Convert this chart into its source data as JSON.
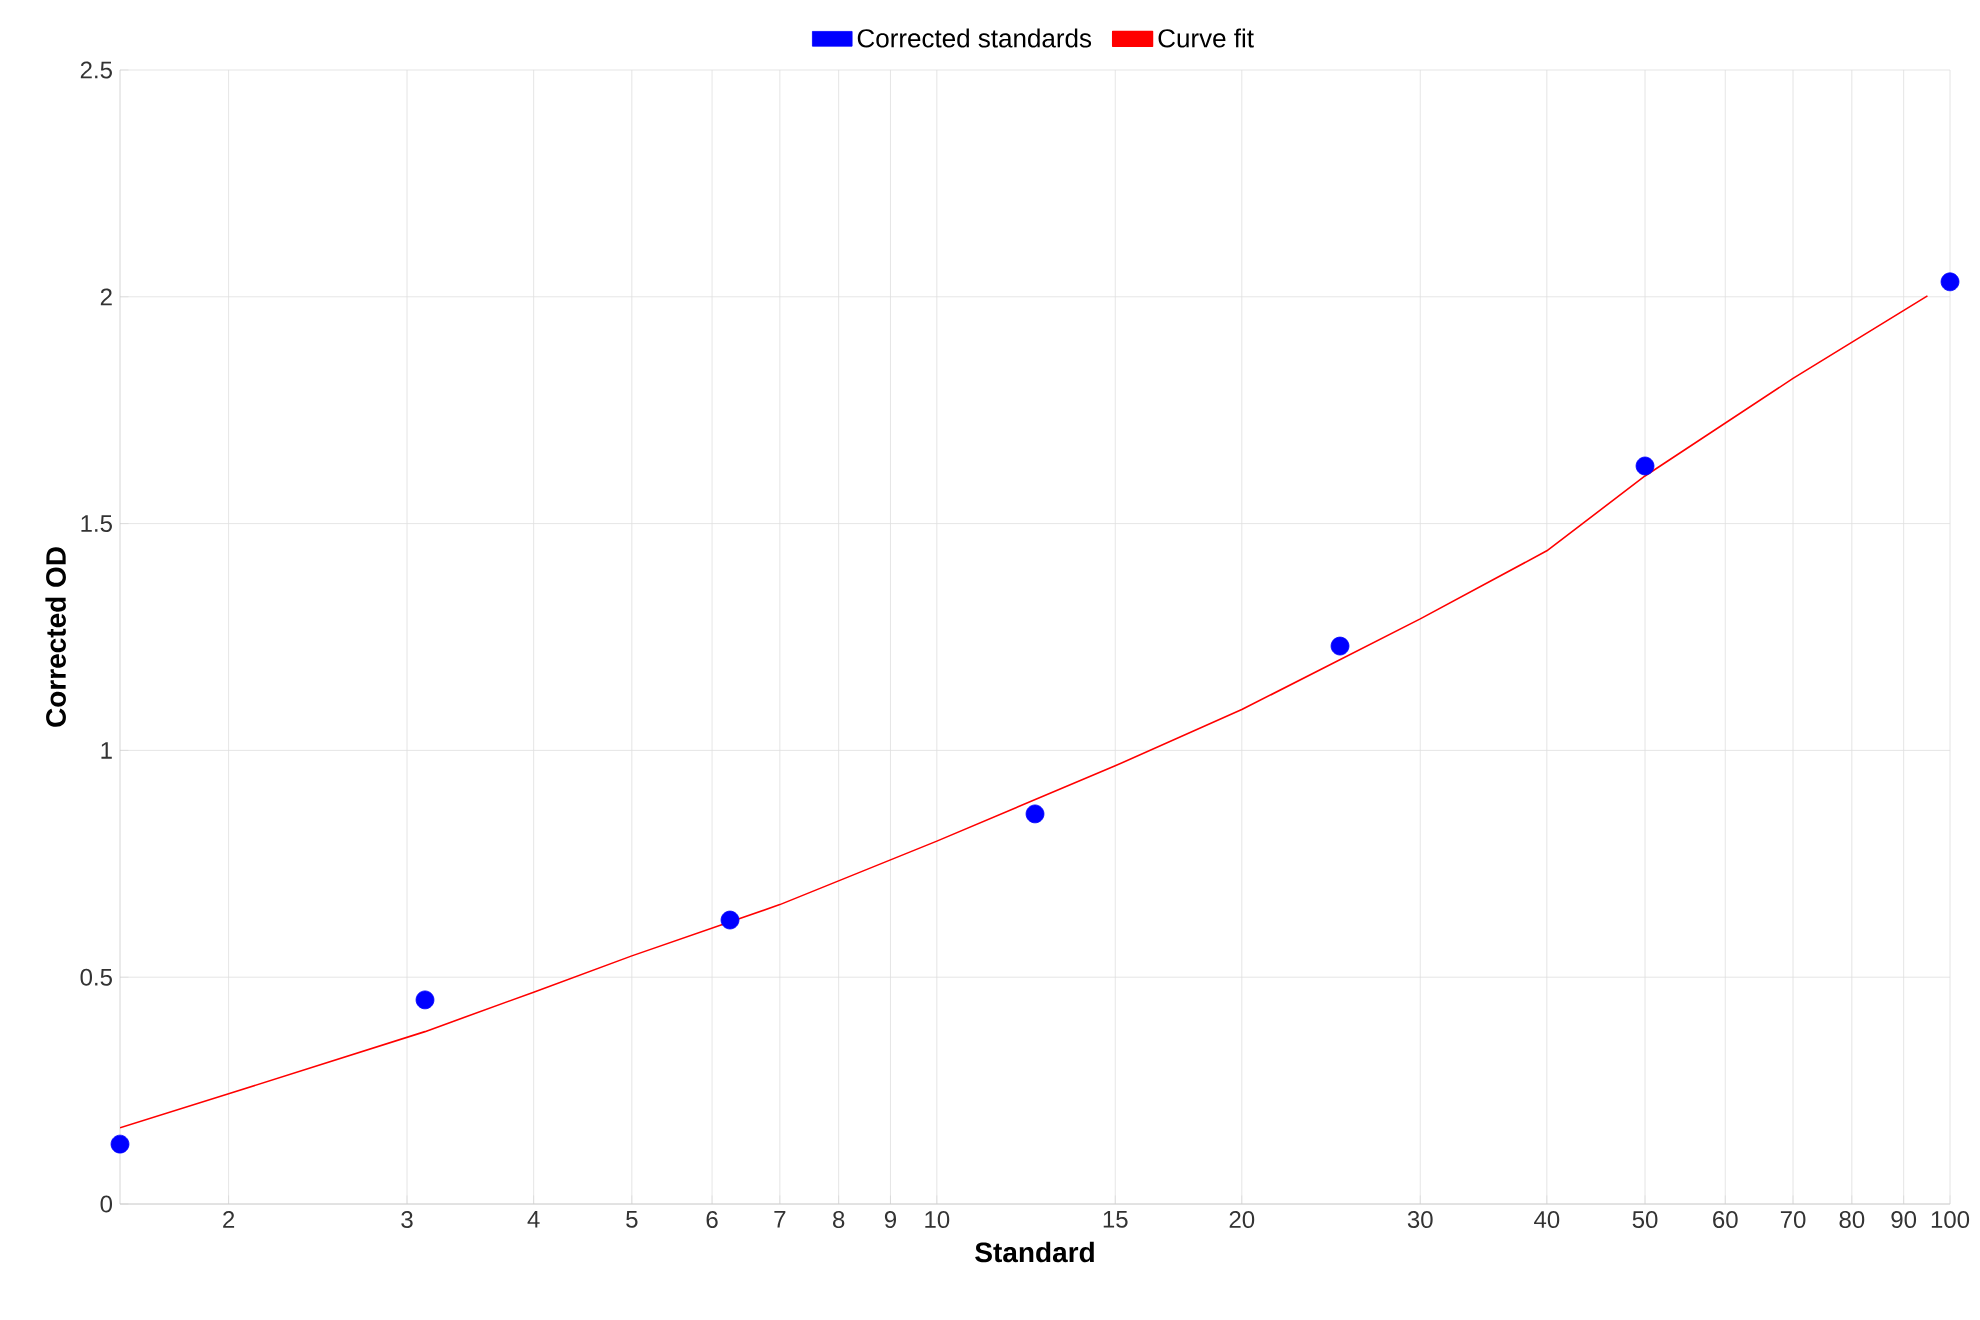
{
  "chart_data": {
    "type": "scatter",
    "xlabel": "Standard",
    "ylabel": "Corrected OD",
    "log": "x",
    "grid": true,
    "legend": "top",
    "xlim": [
      1.5625,
      100
    ],
    "xticks": [
      2,
      3,
      4,
      5,
      6,
      7,
      8,
      9,
      10,
      15,
      20,
      30,
      40,
      50,
      60,
      70,
      80,
      90,
      100
    ],
    "ylim": [
      0,
      2.5
    ],
    "yticks": [
      0,
      0.5,
      1,
      1.5,
      2,
      2.5
    ],
    "series": [
      {
        "name": "Corrected standards",
        "marker": "circle",
        "color": "#0000ff",
        "x": [
          1.5625,
          3.125,
          6.25,
          12.5,
          25,
          50,
          100
        ],
        "values": [
          0.132,
          0.45,
          0.626,
          0.86,
          1.23,
          1.627,
          2.033
        ]
      },
      {
        "name": "Curve fit",
        "type": "line",
        "marker": "none",
        "color": "#ff0000",
        "x": [
          1.5625,
          2,
          3.125,
          4,
          5,
          7,
          10,
          15,
          20,
          30,
          40,
          50,
          70,
          95
        ],
        "values": [
          0.168,
          0.243,
          0.38,
          0.467,
          0.547,
          0.66,
          0.8,
          0.966,
          1.09,
          1.29,
          1.44,
          1.605,
          1.82,
          2.002
        ]
      }
    ]
  }
}
